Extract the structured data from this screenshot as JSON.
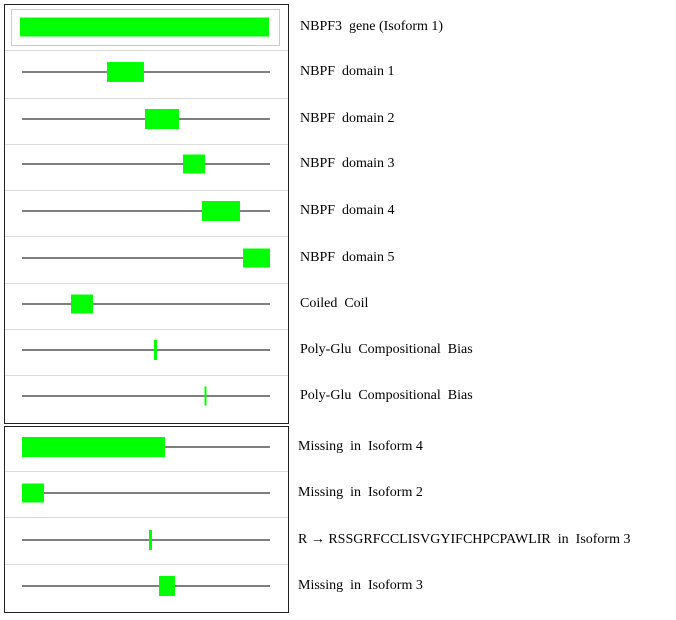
{
  "tracks": [
    {
      "label": "NBPF3  gene (Isoform 1)"
    },
    {
      "label": "NBPF  domain 1"
    },
    {
      "label": "NBPF  domain 2"
    },
    {
      "label": "NBPF  domain 3"
    },
    {
      "label": "NBPF  domain 4"
    },
    {
      "label": "NBPF  domain 5"
    },
    {
      "label": "Coiled  Coil"
    },
    {
      "label": "Poly-Glu  Compositional  Bias"
    },
    {
      "label": "Poly-Glu  Compositional  Bias"
    },
    {
      "label": "Missing  in  Isoform 4"
    },
    {
      "label": "Missing  in  Isoform 2"
    },
    {
      "label": "R → RSSGRFCCLISVGYIFCHPCPAWLIR  in  Isoform 3"
    },
    {
      "label": "Missing  in  Isoform 3"
    }
  ]
}
